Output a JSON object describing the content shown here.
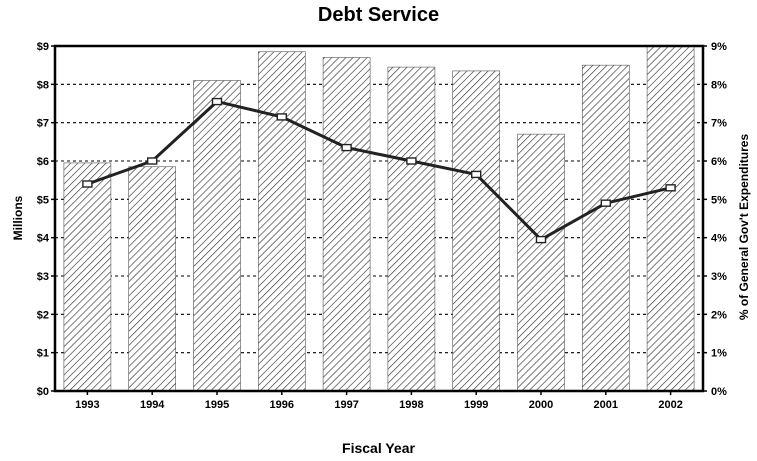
{
  "chart_data": {
    "type": "bar",
    "title": "Debt Service",
    "xlabel": "Fiscal Year",
    "ylabel": "Millions",
    "y2label": "% of General Gov't Expenditures",
    "ylim": [
      0,
      9
    ],
    "y2lim": [
      0,
      9
    ],
    "grid": true,
    "categories": [
      "1993",
      "1994",
      "1995",
      "1996",
      "1997",
      "1998",
      "1999",
      "2000",
      "2001",
      "2002"
    ],
    "y_ticks": [
      "$0",
      "$1",
      "$2",
      "$3",
      "$4",
      "$5",
      "$6",
      "$7",
      "$8",
      "$9"
    ],
    "y2_ticks": [
      "0%",
      "1%",
      "2%",
      "3%",
      "4%",
      "5%",
      "6%",
      "7%",
      "8%",
      "9%"
    ],
    "series": [
      {
        "type": "bar",
        "axis": "left",
        "values": [
          5.95,
          5.85,
          8.1,
          8.85,
          8.7,
          8.45,
          8.35,
          6.7,
          8.5,
          9.0
        ]
      },
      {
        "type": "line",
        "axis": "right",
        "values": [
          5.4,
          6.0,
          7.55,
          7.15,
          6.35,
          6.0,
          5.65,
          3.95,
          4.9,
          5.3
        ]
      }
    ]
  }
}
